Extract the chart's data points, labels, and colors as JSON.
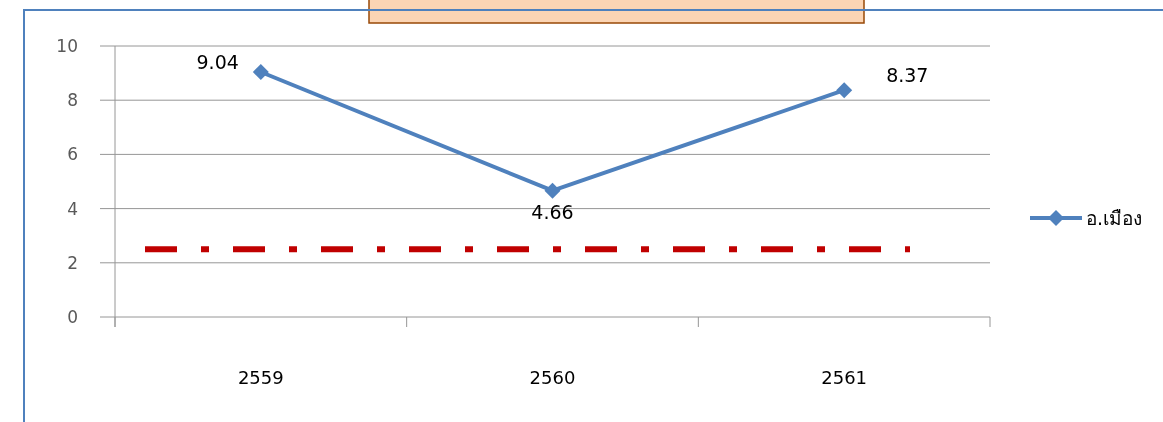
{
  "chart_data": {
    "type": "line",
    "categories": [
      "2559",
      "2560",
      "2561"
    ],
    "series": [
      {
        "name": "อ.เมือง",
        "color": "#4f81bd",
        "values": [
          9.04,
          4.66,
          8.37
        ]
      }
    ],
    "ylim": [
      0,
      10
    ],
    "yticks": [
      0,
      2,
      4,
      6,
      8,
      10
    ],
    "grid": "y",
    "legend": "right",
    "marker": "diamond",
    "data_labels": true,
    "ref_lines": [
      {
        "axis": "y",
        "value": 2.5,
        "color": "#c00000",
        "line_style": "dashed"
      }
    ]
  }
}
